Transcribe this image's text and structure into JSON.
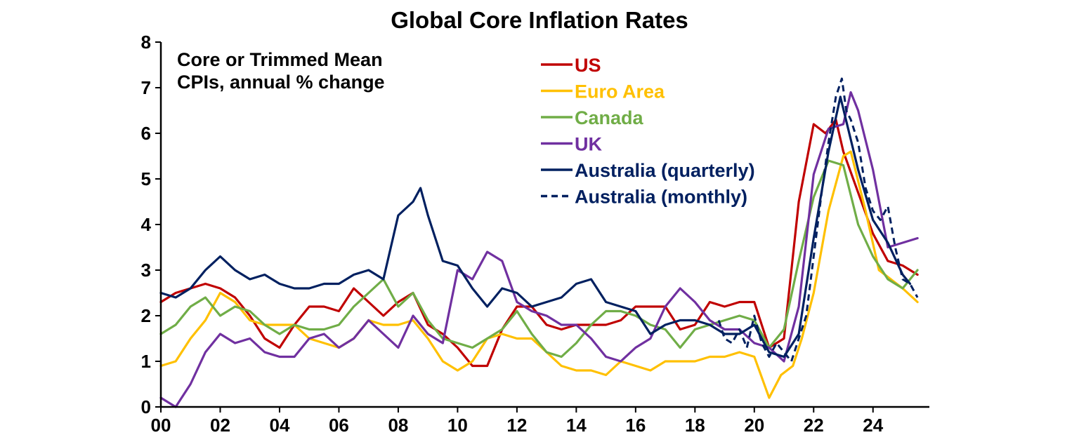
{
  "chart_data": {
    "type": "line",
    "title": "Global Core Inflation Rates",
    "annotation": [
      "Core or Trimmed Mean",
      "CPIs, annual % change"
    ],
    "xlabel": "",
    "ylabel": "",
    "xlim": [
      2000,
      2025.9
    ],
    "ylim": [
      0,
      8
    ],
    "y_ticks": [
      "0",
      "1",
      "2",
      "3",
      "4",
      "5",
      "6",
      "7",
      "8"
    ],
    "x_ticks": [
      {
        "value": 2000,
        "label": "00"
      },
      {
        "value": 2002,
        "label": "02"
      },
      {
        "value": 2004,
        "label": "04"
      },
      {
        "value": 2006,
        "label": "06"
      },
      {
        "value": 2008,
        "label": "08"
      },
      {
        "value": 2010,
        "label": "10"
      },
      {
        "value": 2012,
        "label": "12"
      },
      {
        "value": 2014,
        "label": "14"
      },
      {
        "value": 2016,
        "label": "16"
      },
      {
        "value": 2018,
        "label": "18"
      },
      {
        "value": 2020,
        "label": "20"
      },
      {
        "value": 2022,
        "label": "22"
      },
      {
        "value": 2024,
        "label": "24"
      }
    ],
    "grid": false,
    "legend_position": "top-center",
    "series": [
      {
        "name": "US",
        "color": "#C00000",
        "dash": "solid",
        "x": [
          2000,
          2000.5,
          2001,
          2001.5,
          2002,
          2002.5,
          2003,
          2003.5,
          2004,
          2004.5,
          2005,
          2005.5,
          2006,
          2006.5,
          2007,
          2007.5,
          2008,
          2008.5,
          2009,
          2009.5,
          2010,
          2010.5,
          2011,
          2011.5,
          2012,
          2012.5,
          2013,
          2013.5,
          2014,
          2014.5,
          2015,
          2015.5,
          2016,
          2016.5,
          2017,
          2017.5,
          2018,
          2018.5,
          2019,
          2019.5,
          2020,
          2020.5,
          2021,
          2021.25,
          2021.5,
          2022,
          2022.4,
          2022.75,
          2023,
          2023.5,
          2024,
          2024.5,
          2025,
          2025.5
        ],
        "y": [
          2.3,
          2.5,
          2.6,
          2.7,
          2.6,
          2.4,
          2.0,
          1.5,
          1.3,
          1.8,
          2.2,
          2.2,
          2.1,
          2.6,
          2.3,
          2.0,
          2.3,
          2.5,
          1.8,
          1.6,
          1.3,
          0.9,
          0.9,
          1.7,
          2.2,
          2.2,
          1.8,
          1.7,
          1.8,
          1.8,
          1.8,
          1.9,
          2.2,
          2.2,
          2.2,
          1.7,
          1.8,
          2.3,
          2.2,
          2.3,
          2.3,
          1.3,
          1.5,
          3.0,
          4.5,
          6.2,
          6.0,
          6.3,
          5.6,
          4.7,
          3.8,
          3.2,
          3.1,
          2.9
        ]
      },
      {
        "name": "Euro Area",
        "color": "#FFC000",
        "dash": "solid",
        "x": [
          2000,
          2000.5,
          2001,
          2001.5,
          2002,
          2002.5,
          2003,
          2003.5,
          2004,
          2004.5,
          2005,
          2005.5,
          2006,
          2006.5,
          2007,
          2007.5,
          2008,
          2008.5,
          2009,
          2009.5,
          2010,
          2010.5,
          2011,
          2011.5,
          2012,
          2012.5,
          2013,
          2013.5,
          2014,
          2014.5,
          2015,
          2015.5,
          2016,
          2016.5,
          2017,
          2017.5,
          2018,
          2018.5,
          2019,
          2019.5,
          2020,
          2020.5,
          2020.9,
          2021.3,
          2021.6,
          2022,
          2022.5,
          2023,
          2023.25,
          2023.75,
          2024.2,
          2024.6,
          2025,
          2025.5
        ],
        "y": [
          0.9,
          1.0,
          1.5,
          1.9,
          2.5,
          2.3,
          1.9,
          1.8,
          1.8,
          1.8,
          1.5,
          1.4,
          1.3,
          1.5,
          1.9,
          1.8,
          1.8,
          1.9,
          1.5,
          1.0,
          0.8,
          1.0,
          1.5,
          1.6,
          1.5,
          1.5,
          1.2,
          0.9,
          0.8,
          0.8,
          0.7,
          1.0,
          0.9,
          0.8,
          1.0,
          1.0,
          1.0,
          1.1,
          1.1,
          1.2,
          1.1,
          0.2,
          0.7,
          0.9,
          1.5,
          2.5,
          4.3,
          5.5,
          5.6,
          4.3,
          3.0,
          2.8,
          2.6,
          2.3
        ]
      },
      {
        "name": "Canada",
        "color": "#70AD47",
        "dash": "solid",
        "x": [
          2000,
          2000.5,
          2001,
          2001.5,
          2002,
          2002.5,
          2003,
          2003.5,
          2004,
          2004.5,
          2005,
          2005.5,
          2006,
          2006.5,
          2007,
          2007.5,
          2008,
          2008.5,
          2009,
          2009.5,
          2010,
          2010.5,
          2011,
          2011.5,
          2012,
          2012.5,
          2013,
          2013.5,
          2014,
          2014.5,
          2015,
          2015.5,
          2016,
          2016.5,
          2017,
          2017.5,
          2018,
          2018.5,
          2019,
          2019.5,
          2020,
          2020.5,
          2021,
          2021.5,
          2022,
          2022.5,
          2023,
          2023.5,
          2024,
          2024.5,
          2025,
          2025.5
        ],
        "y": [
          1.6,
          1.8,
          2.2,
          2.4,
          2.0,
          2.2,
          2.1,
          1.8,
          1.6,
          1.8,
          1.7,
          1.7,
          1.8,
          2.2,
          2.5,
          2.8,
          2.2,
          2.5,
          1.9,
          1.5,
          1.4,
          1.3,
          1.5,
          1.7,
          2.1,
          1.6,
          1.2,
          1.1,
          1.4,
          1.8,
          2.1,
          2.1,
          2.0,
          1.8,
          1.7,
          1.3,
          1.7,
          1.8,
          1.9,
          2.0,
          1.9,
          1.3,
          1.7,
          3.2,
          4.6,
          5.4,
          5.3,
          4.0,
          3.3,
          2.8,
          2.6,
          3.0
        ]
      },
      {
        "name": "UK",
        "color": "#7030A0",
        "dash": "solid",
        "x": [
          2000,
          2000.5,
          2001,
          2001.5,
          2002,
          2002.5,
          2003,
          2003.5,
          2004,
          2004.5,
          2005,
          2005.5,
          2006,
          2006.5,
          2007,
          2007.5,
          2008,
          2008.5,
          2009,
          2009.5,
          2010,
          2010.5,
          2011,
          2011.5,
          2012,
          2012.5,
          2013,
          2013.5,
          2014,
          2014.5,
          2015,
          2015.5,
          2016,
          2016.5,
          2017,
          2017.5,
          2018,
          2018.5,
          2019,
          2019.5,
          2020,
          2020.5,
          2021,
          2021.5,
          2022,
          2022.5,
          2023,
          2023.25,
          2023.5,
          2024,
          2024.5,
          2025,
          2025.5
        ],
        "y": [
          0.2,
          0.0,
          0.5,
          1.2,
          1.6,
          1.4,
          1.5,
          1.2,
          1.1,
          1.1,
          1.5,
          1.6,
          1.3,
          1.5,
          1.9,
          1.6,
          1.3,
          2.0,
          1.6,
          1.4,
          3.0,
          2.8,
          3.4,
          3.2,
          2.3,
          2.1,
          2.0,
          1.8,
          1.8,
          1.5,
          1.1,
          1.0,
          1.3,
          1.5,
          2.2,
          2.6,
          2.3,
          1.9,
          1.7,
          1.7,
          1.4,
          1.3,
          1.0,
          2.2,
          5.1,
          6.1,
          6.2,
          6.9,
          6.5,
          5.2,
          3.5,
          3.6,
          3.7
        ]
      },
      {
        "name": "Australia (quarterly)",
        "color": "#002060",
        "dash": "solid",
        "x": [
          2000,
          2000.5,
          2001,
          2001.5,
          2002,
          2002.5,
          2003,
          2003.5,
          2004,
          2004.5,
          2005,
          2005.5,
          2006,
          2006.5,
          2007,
          2007.5,
          2008,
          2008.5,
          2008.75,
          2009,
          2009.5,
          2010,
          2010.5,
          2011,
          2011.5,
          2012,
          2012.5,
          2013,
          2013.5,
          2014,
          2014.5,
          2015,
          2015.5,
          2016,
          2016.5,
          2017,
          2017.5,
          2018,
          2018.5,
          2019,
          2019.5,
          2020,
          2020.5,
          2021,
          2021.5,
          2022,
          2022.5,
          2022.9,
          2023.5,
          2024,
          2024.5,
          2025,
          2025.25
        ],
        "y": [
          2.5,
          2.4,
          2.6,
          3.0,
          3.3,
          3.0,
          2.8,
          2.9,
          2.7,
          2.6,
          2.6,
          2.7,
          2.7,
          2.9,
          3.0,
          2.8,
          4.2,
          4.5,
          4.8,
          4.2,
          3.2,
          3.1,
          2.6,
          2.2,
          2.6,
          2.5,
          2.2,
          2.3,
          2.4,
          2.7,
          2.8,
          2.3,
          2.2,
          2.1,
          1.6,
          1.8,
          1.9,
          1.9,
          1.8,
          1.6,
          1.6,
          1.8,
          1.2,
          1.1,
          1.6,
          3.7,
          5.6,
          6.8,
          5.2,
          4.1,
          3.6,
          2.9,
          2.7
        ]
      },
      {
        "name": "Australia (monthly)",
        "color": "#002060",
        "dash": "dashed",
        "x": [
          2018.8,
          2019,
          2019.25,
          2019.5,
          2019.75,
          2020,
          2020.25,
          2020.5,
          2020.75,
          2021,
          2021.25,
          2021.5,
          2021.75,
          2022,
          2022.25,
          2022.5,
          2022.75,
          2022.95,
          2023.1,
          2023.25,
          2023.5,
          2023.75,
          2024,
          2024.25,
          2024.5,
          2024.75,
          2025,
          2025.25,
          2025.5
        ],
        "y": [
          1.9,
          1.5,
          1.4,
          1.7,
          1.3,
          2.0,
          1.4,
          1.1,
          1.4,
          1.2,
          1.0,
          1.5,
          2.0,
          3.3,
          4.6,
          5.8,
          6.8,
          7.2,
          6.5,
          6.3,
          5.8,
          4.8,
          4.3,
          4.1,
          4.4,
          3.5,
          2.8,
          2.7,
          2.4
        ]
      }
    ]
  }
}
